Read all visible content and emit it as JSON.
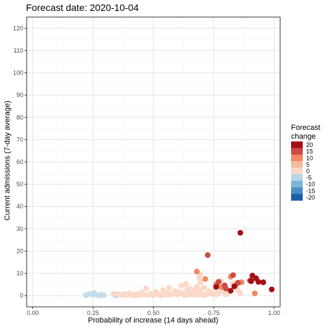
{
  "chart_data": {
    "type": "scatter",
    "title": "Forecast date: 2020-10-04",
    "xlabel": "Probability of increase (14 days ahead)",
    "ylabel": "Current admissions (7-day average)",
    "xlim": [
      -0.025,
      1.025
    ],
    "ylim": [
      -5,
      125
    ],
    "xticks": [
      0,
      0.25,
      0.5,
      0.75,
      1
    ],
    "xtick_labels": [
      "0.00",
      "0.25",
      "0.50",
      "0.75",
      "1.00"
    ],
    "yticks": [
      0,
      10,
      20,
      30,
      40,
      50,
      60,
      70,
      80,
      90,
      100,
      110,
      120
    ],
    "ytick_labels": [
      "0",
      "10",
      "20",
      "30",
      "40",
      "50",
      "60",
      "70",
      "80",
      "90",
      "100",
      "110",
      "120"
    ],
    "grid": true,
    "legend": {
      "title_lines": [
        "Forecast",
        "change"
      ],
      "placement": "right",
      "items": [
        {
          "label": "20",
          "color": "#a50f15"
        },
        {
          "label": "15",
          "color": "#cb4b45"
        },
        {
          "label": "10",
          "color": "#ef8a62"
        },
        {
          "label": "5",
          "color": "#f6bc9f"
        },
        {
          "label": "0",
          "color": "#fbd8c7"
        },
        {
          "label": "-5",
          "color": "#b8d6e8"
        },
        {
          "label": "-10",
          "color": "#7fb3d5"
        },
        {
          "label": "-15",
          "color": "#4a90c4"
        },
        {
          "label": "-20",
          "color": "#1d5ea8"
        }
      ]
    },
    "colors": {
      "dark_red": "#a50f15",
      "red": "#cb4b45",
      "orange": "#ef8a62",
      "light_peach": "#fbd8c7",
      "light_blue": "#c6dcea"
    },
    "series": [
      {
        "color": "#c6dcea",
        "points": [
          {
            "x": 0.22,
            "y": 0.2
          },
          {
            "x": 0.235,
            "y": 0.8
          },
          {
            "x": 0.245,
            "y": 0.5
          },
          {
            "x": 0.255,
            "y": 1.2
          },
          {
            "x": 0.265,
            "y": 0.3
          },
          {
            "x": 0.275,
            "y": 0.1
          },
          {
            "x": 0.285,
            "y": 0.4
          },
          {
            "x": 0.295,
            "y": 0.2
          },
          {
            "x": 0.34,
            "y": 0.3
          },
          {
            "x": 0.345,
            "y": 0.1
          },
          {
            "x": 0.35,
            "y": 0.6
          }
        ]
      },
      {
        "color": "#fbd8c7",
        "points": [
          {
            "x": 0.335,
            "y": 0.9
          },
          {
            "x": 0.36,
            "y": 0.5
          },
          {
            "x": 0.37,
            "y": 0.2
          },
          {
            "x": 0.38,
            "y": 0.8
          },
          {
            "x": 0.39,
            "y": 0.3
          },
          {
            "x": 0.4,
            "y": 1.0
          },
          {
            "x": 0.41,
            "y": 0.4
          },
          {
            "x": 0.42,
            "y": 0.1
          },
          {
            "x": 0.43,
            "y": 0.7
          },
          {
            "x": 0.44,
            "y": 0.2
          },
          {
            "x": 0.45,
            "y": 1.5
          },
          {
            "x": 0.46,
            "y": 0.5
          },
          {
            "x": 0.47,
            "y": 3.2
          },
          {
            "x": 0.48,
            "y": 0.3
          },
          {
            "x": 0.49,
            "y": 0.9
          },
          {
            "x": 0.5,
            "y": 0.2
          },
          {
            "x": 0.51,
            "y": 1.8
          },
          {
            "x": 0.52,
            "y": 0.6
          },
          {
            "x": 0.53,
            "y": 0.1
          },
          {
            "x": 0.54,
            "y": 2.5
          },
          {
            "x": 0.55,
            "y": 0.4
          },
          {
            "x": 0.56,
            "y": 1.2
          },
          {
            "x": 0.565,
            "y": 3.5
          },
          {
            "x": 0.57,
            "y": 0.3
          },
          {
            "x": 0.58,
            "y": 0.8
          },
          {
            "x": 0.59,
            "y": 2.0
          },
          {
            "x": 0.6,
            "y": 0.5
          },
          {
            "x": 0.61,
            "y": 1.6
          },
          {
            "x": 0.615,
            "y": 4.5
          },
          {
            "x": 0.62,
            "y": 0.9
          },
          {
            "x": 0.63,
            "y": 0.2
          },
          {
            "x": 0.635,
            "y": 5.2
          },
          {
            "x": 0.64,
            "y": 2.8
          },
          {
            "x": 0.645,
            "y": 0.4
          },
          {
            "x": 0.65,
            "y": 1.1
          },
          {
            "x": 0.655,
            "y": 3.0
          },
          {
            "x": 0.66,
            "y": 0.7
          },
          {
            "x": 0.665,
            "y": 2.2
          },
          {
            "x": 0.67,
            "y": 0.3
          },
          {
            "x": 0.675,
            "y": 1.5
          },
          {
            "x": 0.68,
            "y": 4.0
          },
          {
            "x": 0.685,
            "y": 0.6
          },
          {
            "x": 0.69,
            "y": 2.5
          },
          {
            "x": 0.695,
            "y": 6.0
          },
          {
            "x": 0.7,
            "y": 1.0
          },
          {
            "x": 0.705,
            "y": 0.2
          },
          {
            "x": 0.71,
            "y": 3.6
          },
          {
            "x": 0.72,
            "y": 0.5
          },
          {
            "x": 0.73,
            "y": 2.0
          },
          {
            "x": 0.74,
            "y": 0.8
          },
          {
            "x": 0.755,
            "y": 3.0
          },
          {
            "x": 0.76,
            "y": 0.4
          },
          {
            "x": 0.77,
            "y": 1.2
          },
          {
            "x": 0.78,
            "y": 6.5
          },
          {
            "x": 0.79,
            "y": 2.0
          },
          {
            "x": 0.8,
            "y": 0.6
          },
          {
            "x": 0.81,
            "y": 1.5
          },
          {
            "x": 0.83,
            "y": 5.5
          },
          {
            "x": 0.85,
            "y": 2.5
          },
          {
            "x": 0.86,
            "y": 1.0
          },
          {
            "x": 0.695,
            "y": 9.5
          },
          {
            "x": 0.69,
            "y": 8.0
          }
        ]
      },
      {
        "color": "#ef8a62",
        "points": [
          {
            "x": 0.68,
            "y": 10.8
          },
          {
            "x": 0.715,
            "y": 7.5
          },
          {
            "x": 0.76,
            "y": 5.2
          },
          {
            "x": 0.78,
            "y": 3.8
          },
          {
            "x": 0.82,
            "y": 8.5
          },
          {
            "x": 0.84,
            "y": 4.5
          },
          {
            "x": 0.92,
            "y": 1.0
          },
          {
            "x": 0.865,
            "y": 6.0
          }
        ]
      },
      {
        "color": "#cb4b45",
        "points": [
          {
            "x": 0.725,
            "y": 18.2
          },
          {
            "x": 0.77,
            "y": 6.2
          },
          {
            "x": 0.795,
            "y": 4.6
          },
          {
            "x": 0.8,
            "y": 3.2
          },
          {
            "x": 0.83,
            "y": 9.2
          },
          {
            "x": 0.85,
            "y": 5.8
          },
          {
            "x": 0.9,
            "y": 6.8
          }
        ]
      },
      {
        "color": "#a50f15",
        "points": [
          {
            "x": 0.86,
            "y": 28.2
          },
          {
            "x": 0.76,
            "y": 4.0
          },
          {
            "x": 0.82,
            "y": 2.2
          },
          {
            "x": 0.835,
            "y": 4.2
          },
          {
            "x": 0.905,
            "y": 6.5
          },
          {
            "x": 0.91,
            "y": 9.0
          },
          {
            "x": 0.925,
            "y": 7.8
          },
          {
            "x": 0.935,
            "y": 6.2
          },
          {
            "x": 0.955,
            "y": 6.0
          },
          {
            "x": 0.99,
            "y": 2.8
          }
        ]
      }
    ]
  }
}
